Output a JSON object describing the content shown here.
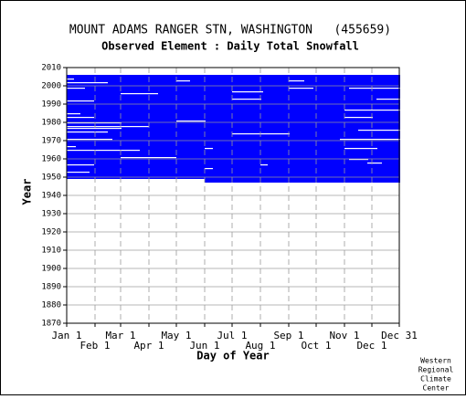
{
  "chart_data": {
    "type": "raster",
    "title": "MOUNT ADAMS RANGER STN, WASHINGTON   (455659)",
    "subtitle": "Observed Element : Daily Total Snowfall",
    "xlabel": "Day of Year",
    "ylabel": "Year",
    "credit": [
      "Western",
      "Regional",
      "Climate",
      "Center"
    ],
    "color": "#0000ff",
    "gap_color": "#ffffff",
    "xlim": [
      1,
      365
    ],
    "ylim": [
      1870,
      2010
    ],
    "xticks": [
      {
        "value": 1,
        "label": "Jan 1"
      },
      {
        "value": 32,
        "label": "Feb 1"
      },
      {
        "value": 60,
        "label": "Mar 1"
      },
      {
        "value": 91,
        "label": "Apr 1"
      },
      {
        "value": 121,
        "label": "May 1"
      },
      {
        "value": 152,
        "label": "Jun 1"
      },
      {
        "value": 182,
        "label": "Jul 1"
      },
      {
        "value": 213,
        "label": "Aug 1"
      },
      {
        "value": 244,
        "label": "Sep 1"
      },
      {
        "value": 274,
        "label": "Oct 1"
      },
      {
        "value": 305,
        "label": "Nov 1"
      },
      {
        "value": 335,
        "label": "Dec 1"
      },
      {
        "value": 365,
        "label": "Dec 31"
      }
    ],
    "yticks": [
      1870,
      1880,
      1890,
      1900,
      1910,
      1920,
      1930,
      1940,
      1950,
      1960,
      1970,
      1980,
      1990,
      2000,
      2010
    ],
    "grid": true,
    "blocks": [
      [
        1,
        152,
        1949,
        2005
      ],
      [
        152,
        365,
        1947,
        2005
      ]
    ],
    "gaps": [
      [
        2004,
        1,
        8,
        1
      ],
      [
        2002,
        1,
        45,
        1
      ],
      [
        1999,
        1,
        20,
        1
      ],
      [
        1996,
        60,
        100,
        1
      ],
      [
        1992,
        1,
        30,
        1
      ],
      [
        1985,
        1,
        15,
        1
      ],
      [
        1983,
        1,
        30,
        1
      ],
      [
        1980,
        1,
        60,
        1
      ],
      [
        1978,
        1,
        90,
        1
      ],
      [
        1977,
        1,
        60,
        1
      ],
      [
        1975,
        1,
        45,
        1
      ],
      [
        1971,
        1,
        50,
        1
      ],
      [
        1967,
        1,
        10,
        1
      ],
      [
        1965,
        1,
        80,
        1
      ],
      [
        1961,
        60,
        120,
        1
      ],
      [
        1957,
        1,
        30,
        1
      ],
      [
        1953,
        1,
        25,
        1
      ],
      [
        2003,
        121,
        135,
        1
      ],
      [
        2003,
        244,
        260,
        1
      ],
      [
        1999,
        244,
        270,
        1
      ],
      [
        1997,
        182,
        215,
        1
      ],
      [
        1993,
        182,
        213,
        1
      ],
      [
        1981,
        121,
        152,
        1
      ],
      [
        1974,
        182,
        244,
        1
      ],
      [
        1966,
        152,
        160,
        1
      ],
      [
        1957,
        213,
        220,
        1
      ],
      [
        1955,
        152,
        160,
        1
      ],
      [
        1999,
        310,
        365,
        1
      ],
      [
        1993,
        340,
        365,
        1
      ],
      [
        1987,
        305,
        365,
        1
      ],
      [
        1983,
        305,
        335,
        1
      ],
      [
        1976,
        320,
        365,
        1
      ],
      [
        1971,
        300,
        365,
        1
      ],
      [
        1966,
        305,
        340,
        1
      ],
      [
        1960,
        310,
        330,
        1
      ],
      [
        1958,
        330,
        345,
        1
      ]
    ]
  }
}
